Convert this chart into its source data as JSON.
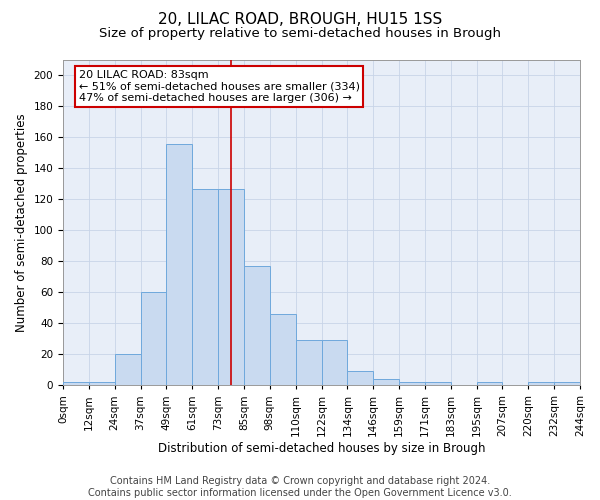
{
  "title": "20, LILAC ROAD, BROUGH, HU15 1SS",
  "subtitle": "Size of property relative to semi-detached houses in Brough",
  "xlabel": "Distribution of semi-detached houses by size in Brough",
  "ylabel": "Number of semi-detached properties",
  "footer_line1": "Contains HM Land Registry data © Crown copyright and database right 2024.",
  "footer_line2": "Contains public sector information licensed under the Open Government Licence v3.0.",
  "property_size_bin": 6.5,
  "bin_labels": [
    "0sqm",
    "12sqm",
    "24sqm",
    "37sqm",
    "49sqm",
    "61sqm",
    "73sqm",
    "85sqm",
    "98sqm",
    "110sqm",
    "122sqm",
    "134sqm",
    "146sqm",
    "159sqm",
    "171sqm",
    "183sqm",
    "195sqm",
    "207sqm",
    "220sqm",
    "232sqm",
    "244sqm"
  ],
  "counts": [
    2,
    2,
    20,
    60,
    156,
    127,
    127,
    77,
    46,
    29,
    29,
    9,
    4,
    2,
    2,
    0,
    2,
    0,
    2,
    2
  ],
  "bar_facecolor": "#c9daf0",
  "bar_edgecolor": "#6fa8dc",
  "vline_color": "#cc0000",
  "annotation_box_edgecolor": "#cc0000",
  "annotation_text_line1": "20 LILAC ROAD: 83sqm",
  "annotation_text_line2": "← 51% of semi-detached houses are smaller (334)",
  "annotation_text_line3": "47% of semi-detached houses are larger (306) →",
  "ylim": [
    0,
    210
  ],
  "yticks": [
    0,
    20,
    40,
    60,
    80,
    100,
    120,
    140,
    160,
    180,
    200
  ],
  "grid_color": "#c8d4e8",
  "background_color": "#e8eef8",
  "title_fontsize": 11,
  "subtitle_fontsize": 9.5,
  "axis_label_fontsize": 8.5,
  "tick_fontsize": 7.5,
  "footer_fontsize": 7,
  "annotation_fontsize": 8
}
